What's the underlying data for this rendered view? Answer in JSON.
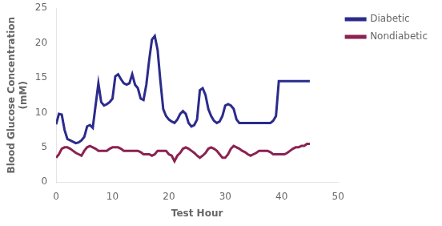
{
  "chart_data": {
    "type": "line",
    "x": [
      0,
      0.5,
      1,
      1.5,
      2,
      2.5,
      3,
      3.5,
      4,
      4.5,
      5,
      5.5,
      6,
      6.5,
      7,
      7.5,
      8,
      8.5,
      9,
      9.5,
      10,
      10.5,
      11,
      11.5,
      12,
      12.5,
      13,
      13.5,
      14,
      14.5,
      15,
      15.5,
      16,
      16.5,
      17,
      17.5,
      18,
      18.5,
      19,
      19.5,
      20,
      20.5,
      21,
      21.5,
      22,
      22.5,
      23,
      23.5,
      24,
      24.5,
      25,
      25.5,
      26,
      26.5,
      27,
      27.5,
      28,
      28.5,
      29,
      29.5,
      30,
      30.5,
      31,
      31.5,
      32,
      32.5,
      33,
      33.5,
      34,
      34.5,
      35,
      35.5,
      36,
      36.5,
      37,
      37.5,
      38,
      38.5,
      39,
      39.5,
      40,
      40.5,
      41,
      41.5,
      42,
      42.5,
      43,
      43.5,
      44,
      44.5,
      45
    ],
    "series": [
      {
        "name": "Diabetic",
        "color": "#2b2b8c",
        "values": [
          8.3,
          9.8,
          9.7,
          7.5,
          6.2,
          6.0,
          5.8,
          5.6,
          5.7,
          6.0,
          6.5,
          8.0,
          8.2,
          7.8,
          11.0,
          14.2,
          11.5,
          11.0,
          11.2,
          11.5,
          12.0,
          15.2,
          15.5,
          14.8,
          14.2,
          14.0,
          14.2,
          15.5,
          14.0,
          13.5,
          12.0,
          11.8,
          14.0,
          17.5,
          20.5,
          21.0,
          19.0,
          14.5,
          10.5,
          9.5,
          9.0,
          8.7,
          8.5,
          9.0,
          9.8,
          10.2,
          9.8,
          8.5,
          8.0,
          8.2,
          9.0,
          13.2,
          13.5,
          12.5,
          10.5,
          9.5,
          8.8,
          8.5,
          8.7,
          9.5,
          11.0,
          11.2,
          11.0,
          10.5,
          9.0,
          8.5,
          8.5,
          8.5,
          8.5,
          8.5,
          8.5,
          8.5,
          8.5,
          8.5,
          8.5,
          8.5,
          8.5,
          8.8,
          9.5,
          14.5,
          14.5,
          14.5,
          14.5,
          14.5,
          14.5,
          14.5,
          14.5,
          14.5,
          14.5,
          14.5,
          14.5
        ]
      },
      {
        "name": "Nondiabetic",
        "color": "#8b2252",
        "values": [
          3.5,
          4.0,
          4.8,
          5.0,
          5.0,
          4.8,
          4.5,
          4.2,
          4.0,
          3.8,
          4.5,
          5.0,
          5.2,
          5.0,
          4.8,
          4.5,
          4.5,
          4.5,
          4.5,
          4.8,
          5.0,
          5.0,
          5.0,
          4.8,
          4.5,
          4.5,
          4.5,
          4.5,
          4.5,
          4.5,
          4.3,
          4.0,
          4.0,
          4.0,
          3.8,
          4.0,
          4.5,
          4.5,
          4.5,
          4.5,
          4.0,
          3.8,
          3.0,
          3.8,
          4.2,
          4.8,
          5.0,
          4.8,
          4.5,
          4.2,
          3.8,
          3.5,
          3.8,
          4.2,
          4.8,
          5.0,
          4.8,
          4.5,
          4.0,
          3.5,
          3.5,
          4.0,
          4.8,
          5.2,
          5.0,
          4.8,
          4.5,
          4.3,
          4.0,
          3.8,
          4.0,
          4.2,
          4.5,
          4.5,
          4.5,
          4.5,
          4.3,
          4.0,
          4.0,
          4.0,
          4.0,
          4.0,
          4.2,
          4.5,
          4.8,
          5.0,
          5.0,
          5.2,
          5.2,
          5.5,
          5.5
        ]
      }
    ],
    "xlabel": "Test Hour",
    "ylabel": "Blood Glucose Concentration\n(mM)",
    "xlim": [
      0,
      50
    ],
    "ylim": [
      0,
      25
    ],
    "xticks": [
      0,
      10,
      20,
      30,
      40,
      50
    ],
    "yticks": [
      0,
      5,
      10,
      15,
      20,
      25
    ],
    "grid": false,
    "legend": "right"
  }
}
